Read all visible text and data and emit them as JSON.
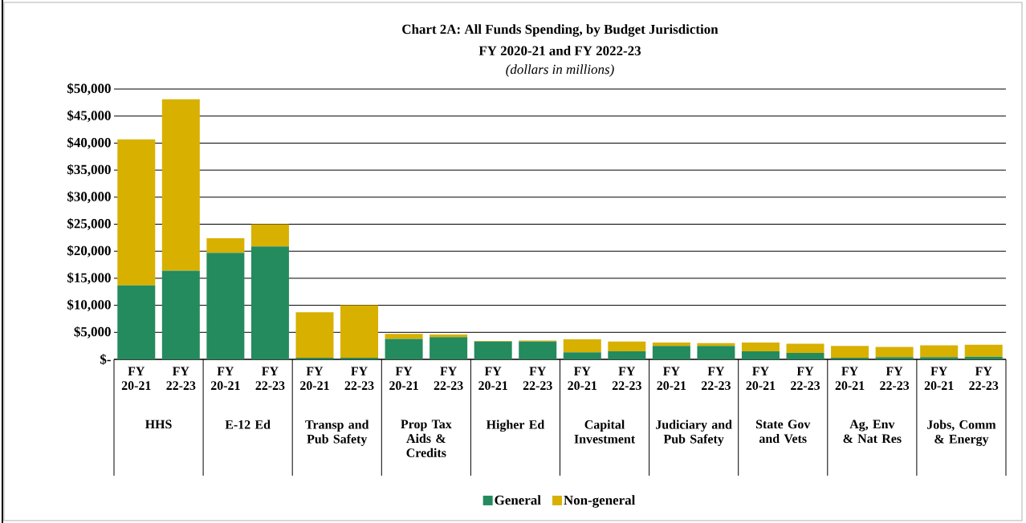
{
  "chart_data": {
    "type": "bar",
    "stacked": true,
    "title": "Chart 2A:  All Funds Spending, by Budget Jurisdiction",
    "subtitle": "FY 2020-21 and FY 2022-23",
    "annotations": [
      "(dollars in millions)",
      "HHS",
      "E-12 Ed",
      "Transp and Pub Safety",
      "Prop Tax Aids & Credits",
      "Higher Ed",
      "Capital Investment",
      "Judiciary and Pub Safety",
      "State Gov and Vets",
      "Ag, Env & Nat Res",
      "Jobs, Comm & Energy"
    ],
    "categories": [
      "FY 20-21",
      "FY 22-23",
      "FY 20-21",
      "FY 22-23",
      "FY 20-21",
      "FY 22-23",
      "FY 20-21",
      "FY 22-23",
      "FY 20-21",
      "FY 22-23",
      "FY 20-21",
      "FY 22-23",
      "FY 20-21",
      "FY 22-23",
      "FY 20-21",
      "FY 22-23",
      "FY 20-21",
      "FY 22-23",
      "FY 20-21",
      "FY 22-23"
    ],
    "series": [
      {
        "name": "General",
        "color": "#238b5d",
        "values": [
          13700,
          16400,
          19700,
          20900,
          300,
          300,
          3800,
          4100,
          3300,
          3300,
          1300,
          1500,
          2500,
          2500,
          1500,
          1200,
          300,
          400,
          400,
          500
        ]
      },
      {
        "name": "Non-general",
        "color": "#d8b000",
        "values": [
          27000,
          31700,
          2700,
          4100,
          8400,
          9700,
          900,
          500,
          100,
          200,
          2400,
          1800,
          600,
          500,
          1600,
          1700,
          2200,
          1900,
          2200,
          2200
        ]
      }
    ],
    "ylim": [
      0,
      50000
    ],
    "yticks": [
      {
        "value": 0,
        "label": "$-"
      },
      {
        "value": 5000,
        "label": "$5,000"
      },
      {
        "value": 10000,
        "label": "$10,000"
      },
      {
        "value": 15000,
        "label": "$15,000"
      },
      {
        "value": 20000,
        "label": "$20,000"
      },
      {
        "value": 25000,
        "label": "$25,000"
      },
      {
        "value": 30000,
        "label": "$30,000"
      },
      {
        "value": 35000,
        "label": "$35,000"
      },
      {
        "value": 40000,
        "label": "$40,000"
      },
      {
        "value": 45000,
        "label": "$45,000"
      },
      {
        "value": 50000,
        "label": "$50,000"
      }
    ],
    "grid": "y",
    "legend": "bottom"
  }
}
